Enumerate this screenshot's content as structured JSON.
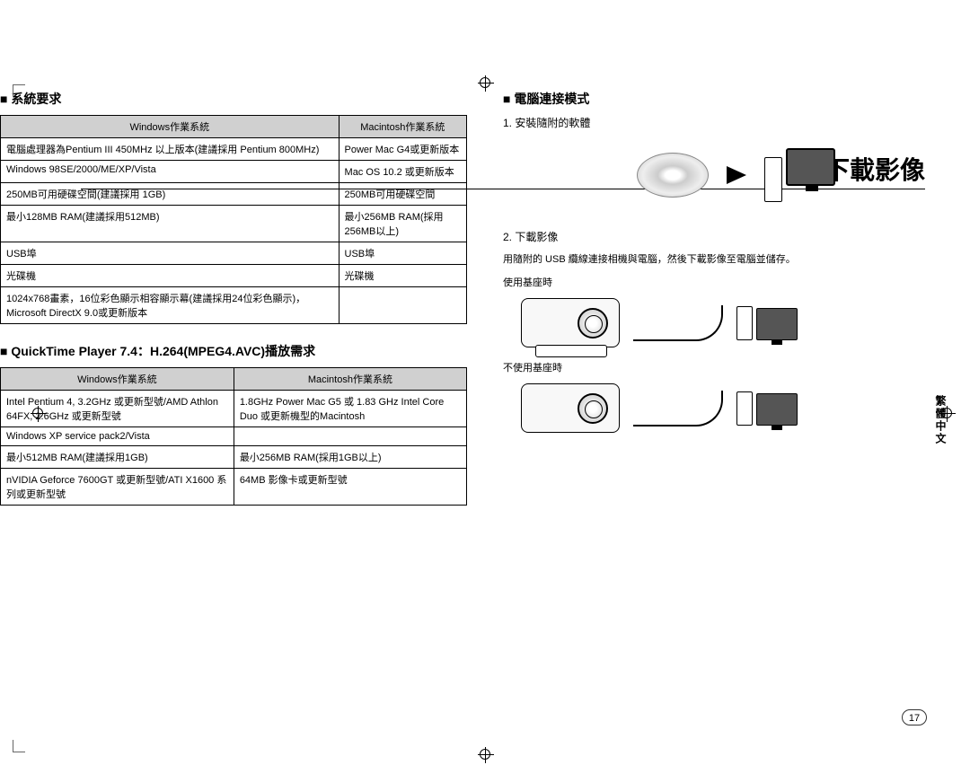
{
  "page": {
    "title": "下載影像",
    "number": "17",
    "side_label": "繁體中文"
  },
  "section_sysreq": {
    "title": "系統要求",
    "headers": {
      "win": "Windows作業系統",
      "mac": "Macintosh作業系統"
    },
    "rows": [
      {
        "win": "電腦處理器為Pentium III 450MHz 以上版本(建議採用 Pentium 800MHz)",
        "mac": "Power Mac G4或更新版本"
      },
      {
        "win": "Windows 98SE/2000/ME/XP/Vista",
        "mac": "Mac OS 10.2 或更新版本"
      },
      {
        "win": "250MB可用硬碟空間(建議採用 1GB)",
        "mac": "250MB可用硬碟空間"
      },
      {
        "win": "最小128MB RAM(建議採用512MB)",
        "mac": "最小256MB RAM(採用256MB以上)"
      },
      {
        "win": "USB埠",
        "mac": "USB埠"
      },
      {
        "win": "光碟機",
        "mac": "光碟機"
      },
      {
        "win": "1024x768畫素，16位彩色顯示相容顯示幕(建議採用24位彩色顯示)，Microsoft DirectX 9.0或更新版本",
        "mac": ""
      }
    ]
  },
  "section_qt": {
    "title": "QuickTime Player 7.4：H.264(MPEG4.AVC)播放需求",
    "headers": {
      "win": "Windows作業系統",
      "mac": "Macintosh作業系統"
    },
    "rows": [
      {
        "win": "Intel Pentium 4, 3.2GHz 或更新型號/AMD Athlon 64FX, 2.6GHz 或更新型號",
        "mac": "1.8GHz Power Mac G5 或 1.83 GHz Intel Core Duo 或更新機型的Macintosh"
      },
      {
        "win": "Windows XP service pack2/Vista",
        "mac": ""
      },
      {
        "win": "最小512MB RAM(建議採用1GB)",
        "mac": "最小256MB RAM(採用1GB以上)"
      },
      {
        "win": "nVIDIA Geforce 7600GT 或更新型號/ATI X1600 系列或更新型號",
        "mac": "64MB 影像卡或更新型號"
      }
    ]
  },
  "section_connect": {
    "title": "電腦連接模式",
    "step1": "1. 安裝隨附的軟體",
    "step2": "2. 下載影像",
    "step2_note": "用隨附的 USB 纜線連接相機與電腦，然後下載影像至電腦並儲存。",
    "with_dock": "使用基座時",
    "without_dock": "不使用基座時"
  }
}
